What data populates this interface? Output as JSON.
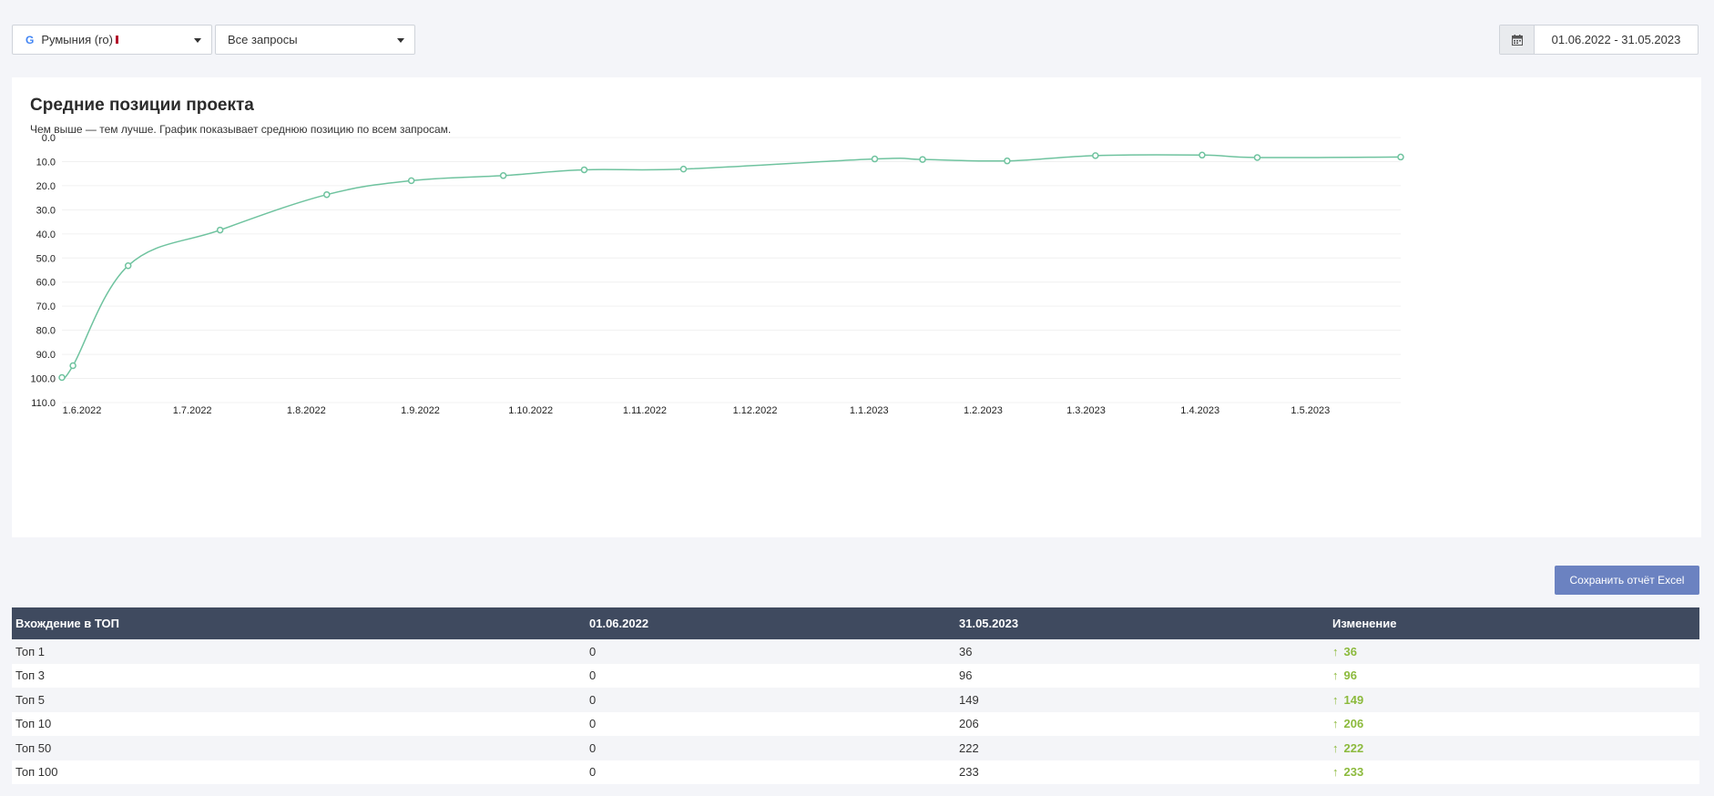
{
  "filters": {
    "engine": {
      "logo": "G",
      "label": "Румыния (ro)"
    },
    "queries": {
      "label": "Все запросы"
    }
  },
  "date_range": {
    "icon": "calendar-icon",
    "text": "01.06.2022 - 31.05.2023"
  },
  "chart": {
    "title": "Средние позиции проекта",
    "subtitle": "Чем выше — тем лучше. График показывает среднюю позицию по всем запросам."
  },
  "chart_data": {
    "type": "line",
    "title": "Средние позиции проекта",
    "x_tick_labels": [
      "1.6.2022",
      "1.7.2022",
      "1.8.2022",
      "1.9.2022",
      "1.10.2022",
      "1.11.2022",
      "1.12.2022",
      "1.1.2023",
      "1.2.2023",
      "1.3.2023",
      "1.4.2023",
      "1.5.2023"
    ],
    "y_tick_labels": [
      "0.0",
      "10.0",
      "20.0",
      "30.0",
      "40.0",
      "50.0",
      "60.0",
      "70.0",
      "80.0",
      "90.0",
      "100.0",
      "110.0"
    ],
    "ylim": [
      0,
      110
    ],
    "y_inverted": true,
    "xlim": [
      "2022-06-01",
      "2023-05-31"
    ],
    "grid": true,
    "color": "#6fc39f",
    "series": [
      {
        "points": [
          {
            "x": "2022-06-01",
            "y": 99.6
          },
          {
            "x": "2022-06-04",
            "y": 94.7
          },
          {
            "x": "2022-06-19",
            "y": 53.2
          },
          {
            "x": "2022-07-14",
            "y": 38.4
          },
          {
            "x": "2022-08-12",
            "y": 23.7
          },
          {
            "x": "2022-09-04",
            "y": 17.9
          },
          {
            "x": "2022-09-29",
            "y": 15.8
          },
          {
            "x": "2022-10-21",
            "y": 13.4
          },
          {
            "x": "2022-11-17",
            "y": 13.1
          },
          {
            "x": "2023-01-08",
            "y": 8.9
          },
          {
            "x": "2023-01-21",
            "y": 9.1
          },
          {
            "x": "2023-02-13",
            "y": 9.7
          },
          {
            "x": "2023-03-09",
            "y": 7.5
          },
          {
            "x": "2023-04-07",
            "y": 7.3
          },
          {
            "x": "2023-04-22",
            "y": 8.3
          },
          {
            "x": "2023-05-31",
            "y": 8.1
          }
        ]
      }
    ]
  },
  "actions": {
    "save_excel": "Сохранить отчёт Excel"
  },
  "table": {
    "headers": [
      "Вхождение в ТОП",
      "01.06.2022",
      "31.05.2023",
      "Изменение"
    ],
    "arrow": "↑",
    "rows": [
      {
        "label": "Топ 1",
        "start": "0",
        "end": "36",
        "change": "36"
      },
      {
        "label": "Топ 3",
        "start": "0",
        "end": "96",
        "change": "96"
      },
      {
        "label": "Топ 5",
        "start": "0",
        "end": "149",
        "change": "149"
      },
      {
        "label": "Топ 10",
        "start": "0",
        "end": "206",
        "change": "206"
      },
      {
        "label": "Топ 50",
        "start": "0",
        "end": "222",
        "change": "222"
      },
      {
        "label": "Топ 100",
        "start": "0",
        "end": "233",
        "change": "233"
      }
    ],
    "change_color": "#8cba3d"
  }
}
